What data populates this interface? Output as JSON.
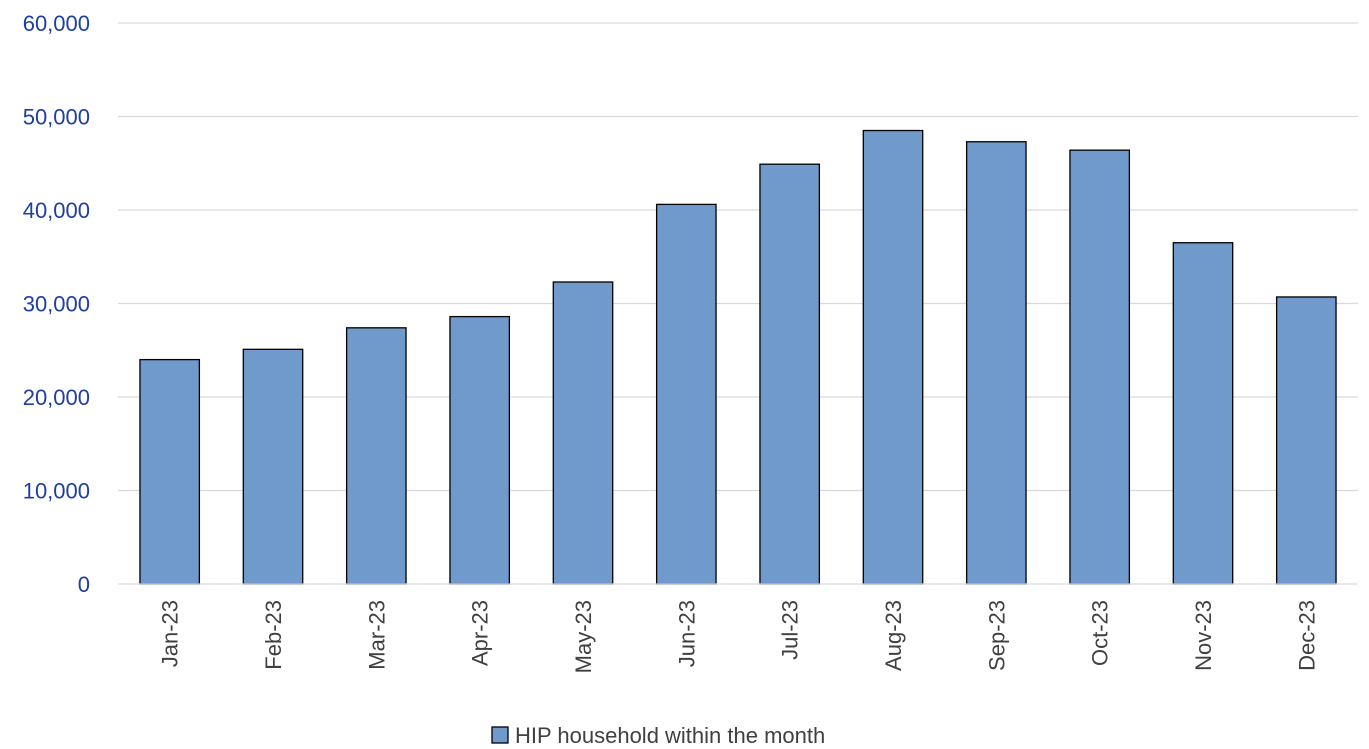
{
  "chart_data": {
    "type": "bar",
    "categories": [
      "Jan-23",
      "Feb-23",
      "Mar-23",
      "Apr-23",
      "May-23",
      "Jun-23",
      "Jul-23",
      "Aug-23",
      "Sep-23",
      "Oct-23",
      "Nov-23",
      "Dec-23"
    ],
    "series": [
      {
        "name": "HIP household within the month",
        "values": [
          24000,
          25100,
          27400,
          28600,
          32300,
          40600,
          44900,
          48500,
          47300,
          46400,
          36500,
          30700
        ]
      }
    ],
    "ylim": [
      0,
      60000
    ],
    "yticks": [
      0,
      10000,
      20000,
      30000,
      40000,
      50000,
      60000
    ],
    "ytick_labels": [
      "0",
      "10,000",
      "20,000",
      "30,000",
      "40,000",
      "50,000",
      "60,000"
    ],
    "grid": true,
    "legend_position": "bottom",
    "colors": {
      "bar_fill": "#7099cc",
      "bar_stroke": "#000000",
      "gridline": "#d9d9d9",
      "y_tick_text": "#1f3f9f",
      "x_tick_text": "#404040"
    }
  }
}
